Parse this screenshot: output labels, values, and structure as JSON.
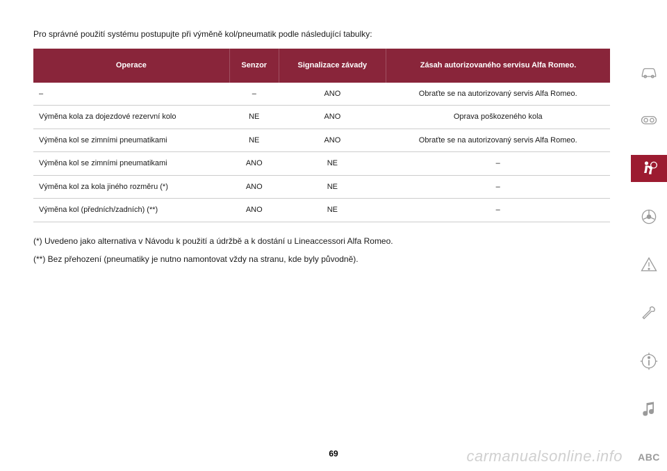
{
  "intro": "Pro správné použití systému postupujte při výměně kol/pneumatik podle následující tabulky:",
  "table": {
    "headers": [
      "Operace",
      "Senzor",
      "Signalizace závady",
      "Zásah autorizovaného servisu Alfa Romeo."
    ],
    "rows": [
      [
        "–",
        "–",
        "ANO",
        "Obraťte se na autorizovaný servis Alfa Romeo."
      ],
      [
        "Výměna kola za dojezdové rezervní kolo",
        "NE",
        "ANO",
        "Oprava poškozeného kola"
      ],
      [
        "Výměna kol se zimními pneumatikami",
        "NE",
        "ANO",
        "Obraťte se na autorizovaný servis Alfa Romeo."
      ],
      [
        "Výměna kol se zimními pneumatikami",
        "ANO",
        "NE",
        "–"
      ],
      [
        "Výměna kol za kola jiného rozměru (*)",
        "ANO",
        "NE",
        "–"
      ],
      [
        "Výměna kol (předních/zadních) (**)",
        "ANO",
        "NE",
        "–"
      ]
    ],
    "header_bg": "#89253a",
    "header_color": "#ffffff",
    "border_color": "#cccccc",
    "font_size": 11
  },
  "footnotes": [
    "(*) Uvedeno jako alternativa v Návodu k použití a údržbě a k dostání u Lineaccessori Alfa Romeo.",
    "(**) Bez přehození (pneumatiky je nutno namontovat vždy na stranu, kde byly původně)."
  ],
  "page_number": "69",
  "watermark": "carmanualsonline.info",
  "sidebar": {
    "abc_label": "ABC",
    "icons": [
      {
        "name": "car-icon",
        "active": false
      },
      {
        "name": "dashboard-icon",
        "active": false
      },
      {
        "name": "airbag-icon",
        "active": true
      },
      {
        "name": "steering-icon",
        "active": false
      },
      {
        "name": "warning-icon",
        "active": false
      },
      {
        "name": "wrench-icon",
        "active": false
      },
      {
        "name": "info-icon",
        "active": false
      },
      {
        "name": "music-icon",
        "active": false
      }
    ],
    "active_bg": "#9c1b30",
    "icon_color": "#9a9a9a"
  }
}
